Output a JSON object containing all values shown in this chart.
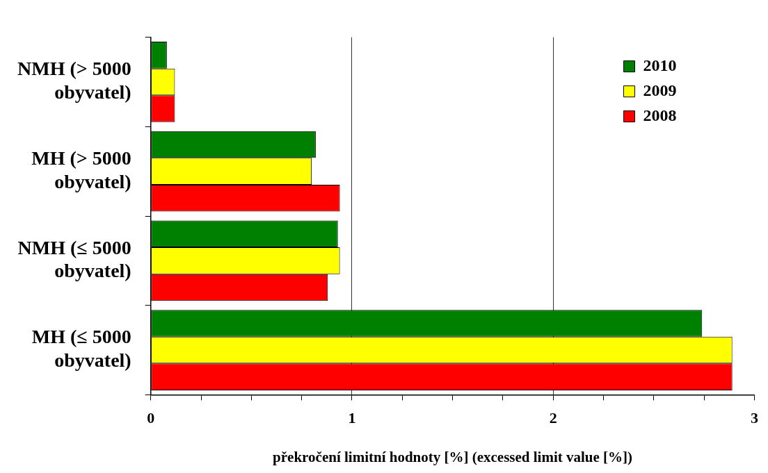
{
  "chart_data": {
    "type": "bar",
    "orientation": "horizontal",
    "xlabel": "překročení limitní hodnoty [%] (excessed limit value [%])",
    "categories": [
      "NMH (> 5000 obyvatel)",
      "MH (> 5000 obyvatel)",
      "NMH (≤ 5000 obyvatel)",
      "MH (≤ 5000 obyvatel)"
    ],
    "series": [
      {
        "name": "2010",
        "color": "#008000",
        "values": [
          0.08,
          0.82,
          0.93,
          2.74
        ]
      },
      {
        "name": "2009",
        "color": "#ffff00",
        "values": [
          0.12,
          0.8,
          0.94,
          2.89
        ]
      },
      {
        "name": "2008",
        "color": "#ff0000",
        "values": [
          0.12,
          0.94,
          0.88,
          2.89
        ]
      }
    ],
    "xlim": [
      0,
      3
    ],
    "xticks": [
      0,
      {
        "value": 0.25,
        "label": null
      },
      {
        "value": 0.5,
        "label": null
      },
      {
        "value": 0.75,
        "label": null
      },
      1,
      {
        "value": 1.25,
        "label": null
      },
      {
        "value": 1.5,
        "label": null
      },
      {
        "value": 1.75,
        "label": null
      },
      2,
      {
        "value": 2.25,
        "label": null
      },
      {
        "value": 2.5,
        "label": null
      },
      {
        "value": 2.75,
        "label": null
      },
      3
    ],
    "grid": "x",
    "legend": "top right"
  }
}
